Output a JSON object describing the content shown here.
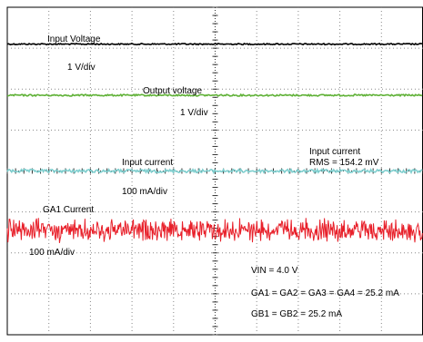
{
  "chart_data": {
    "type": "line",
    "title": "",
    "xlabel": "",
    "ylabel": "",
    "grid": true,
    "x_divisions": 10,
    "y_divisions": 8,
    "series": [
      {
        "label": "Input Voltage",
        "scale": "1 V/div",
        "color": "#000000",
        "level_div": 7.1,
        "noise_div": 0.015
      },
      {
        "label": "Output voltage",
        "scale": "1 V/div",
        "color": "#5fb136",
        "level_div": 5.85,
        "noise_div": 0.02
      },
      {
        "label": "Input current",
        "scale": "100 mA/div",
        "color": "#7fcfcf",
        "level_div": 4.0,
        "noise_div": 0.04,
        "rms_label": "Input current",
        "rms_value": "RMS = 154.2 mV"
      },
      {
        "label": "GA1 Current",
        "scale": "100 mA/div",
        "color": "#e8202a",
        "level_div": 2.55,
        "noise_div": 0.2
      }
    ],
    "notes": [
      "VIN = 4.0 V",
      "GA1 = GA2 = GA3 = GA4 = 25.2 mA",
      "GB1 = GB2 = 25.2 mA"
    ]
  }
}
